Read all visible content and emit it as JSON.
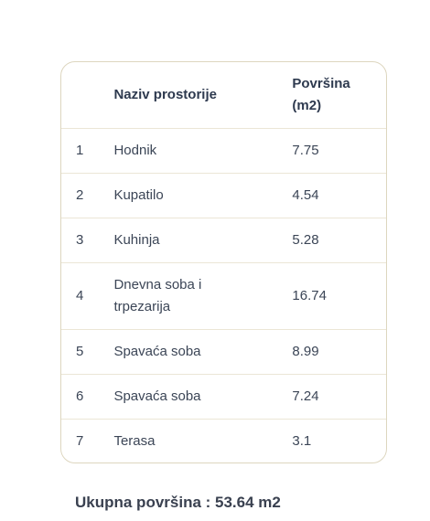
{
  "table": {
    "headers": {
      "number": "",
      "name": "Naziv prostorije",
      "area": "Površina (m2)"
    },
    "rows": [
      {
        "num": "1",
        "name": "Hodnik",
        "area": "7.75"
      },
      {
        "num": "2",
        "name": "Kupatilo",
        "area": "4.54"
      },
      {
        "num": "3",
        "name": "Kuhinja",
        "area": "5.28"
      },
      {
        "num": "4",
        "name": "Dnevna soba i trpezarija",
        "area": "16.74"
      },
      {
        "num": "5",
        "name": "Spavaća soba",
        "area": "8.99"
      },
      {
        "num": "6",
        "name": "Spavaća soba",
        "area": "7.24"
      },
      {
        "num": "7",
        "name": "Terasa",
        "area": "3.1"
      }
    ]
  },
  "summary": {
    "total": "Ukupna površina : 53.64 m2"
  }
}
